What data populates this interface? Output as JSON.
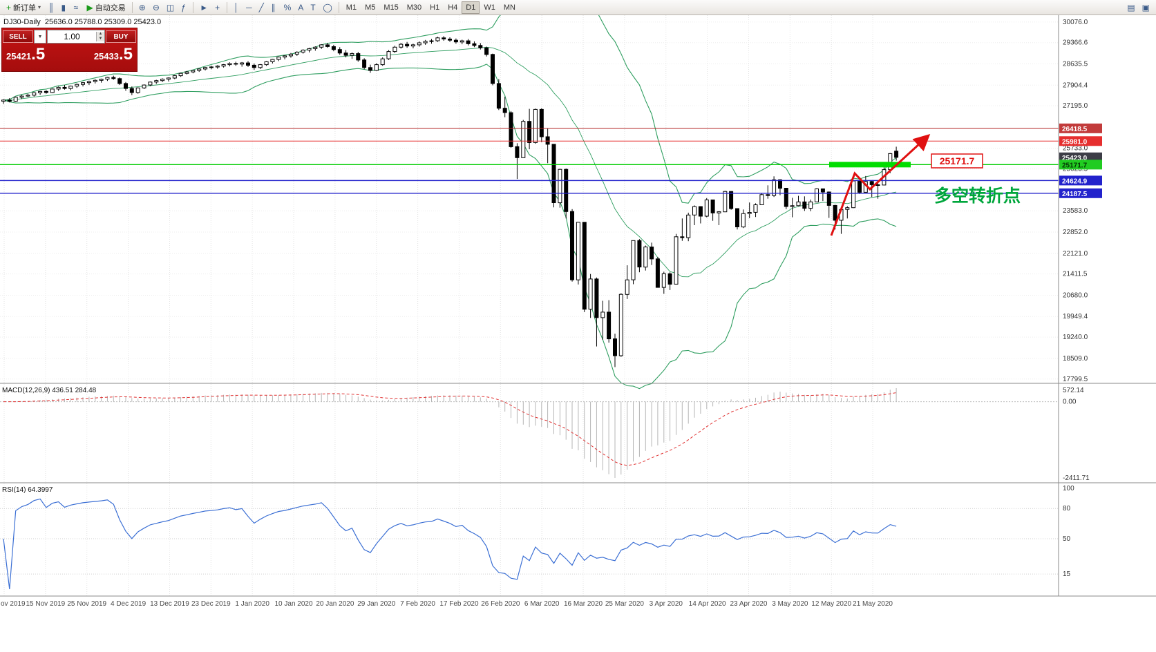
{
  "toolbar": {
    "new_order_label": "新订单",
    "autotrading_label": "自动交易",
    "timeframes": [
      "M1",
      "M5",
      "M15",
      "M30",
      "H1",
      "H4",
      "D1",
      "W1",
      "MN"
    ],
    "active_timeframe": "D1",
    "icon_groups": [
      [
        {
          "name": "bar-chart-icon",
          "glyph": "║"
        },
        {
          "name": "candlestick-chart-icon",
          "glyph": "▮"
        },
        {
          "name": "line-chart-icon",
          "glyph": "≈"
        }
      ],
      [
        {
          "name": "zoom-in-icon",
          "glyph": "⊕"
        },
        {
          "name": "zoom-out-icon",
          "glyph": "⊖"
        },
        {
          "name": "tile-windows-icon",
          "glyph": "◫"
        },
        {
          "name": "indicators-icon",
          "glyph": "ƒ"
        }
      ],
      [
        {
          "name": "cursor-icon",
          "glyph": "►"
        },
        {
          "name": "crosshair-icon",
          "glyph": "+"
        }
      ],
      [
        {
          "name": "vertical-line-icon",
          "glyph": "│"
        },
        {
          "name": "horizontal-line-icon",
          "glyph": "─"
        },
        {
          "name": "trendline-icon",
          "glyph": "╱"
        },
        {
          "name": "channel-icon",
          "glyph": "∥"
        },
        {
          "name": "fibonacci-icon",
          "glyph": "%"
        },
        {
          "name": "text-icon",
          "glyph": "A"
        },
        {
          "name": "label-icon",
          "glyph": "T"
        },
        {
          "name": "shapes-icon",
          "glyph": "◯"
        }
      ],
      [
        {
          "name": "navigator-icon",
          "glyph": "▤"
        },
        {
          "name": "data-window-icon",
          "glyph": "▣"
        }
      ]
    ]
  },
  "chart_header": {
    "symbol": "DJ30-Daily",
    "ohlc": "25636.0 25788.0 25309.0 25423.0"
  },
  "trade_panel": {
    "sell_label": "SELL",
    "buy_label": "BUY",
    "volume": "1.00",
    "sell_price_main": "25421",
    "sell_price_big": ".5",
    "buy_price_main": "25433",
    "buy_price_big": ".5"
  },
  "price_axis": {
    "ticks": [
      "30076.0",
      "29366.6",
      "28635.5",
      "27904.4",
      "27195.0",
      "25733.0",
      "25023.5",
      "23583.0",
      "22852.0",
      "22121.0",
      "21411.5",
      "20680.0",
      "19949.4",
      "19240.0",
      "18509.0",
      "17799.5"
    ],
    "tags": [
      {
        "label": "26418.5",
        "price": 26418.5,
        "bg": "#c23b3b",
        "fg": "#ffffff"
      },
      {
        "label": "25981.0",
        "price": 25981.0,
        "bg": "#e62e2e",
        "fg": "#ffffff"
      },
      {
        "label": "25423.0",
        "price": 25423.0,
        "bg": "#3c3c46",
        "fg": "#ffffff"
      },
      {
        "label": "25171.7",
        "price": 25171.7,
        "bg": "#21cc21",
        "fg": "#043304"
      },
      {
        "label": "24624.9",
        "price": 24624.9,
        "bg": "#2222cc",
        "fg": "#ffffff"
      },
      {
        "label": "24187.5",
        "price": 24187.5,
        "bg": "#2222cc",
        "fg": "#ffffff"
      }
    ]
  },
  "macd": {
    "label": "MACD(12,26,9) 436.51 284.48",
    "axis": [
      "572.14",
      "0.00",
      "-2411.71"
    ]
  },
  "rsi": {
    "label": "RSI(14) 64.3997",
    "axis": [
      "100",
      "80",
      "50",
      "15"
    ],
    "levels": [
      80,
      50,
      15
    ]
  },
  "chart_data": {
    "type": "candlestick",
    "symbol": "DJ30",
    "timeframe": "Daily",
    "ohlc_current": {
      "open": 25636.0,
      "high": 25788.0,
      "low": 25309.0,
      "close": 25423.0
    },
    "ylim": [
      17799.5,
      30076.0
    ],
    "x_dates": [
      "ov 2019",
      "15 Nov 2019",
      "25 Nov 2019",
      "4 Dec 2019",
      "13 Dec 2019",
      "23 Dec 2019",
      "1 Jan 2020",
      "10 Jan 2020",
      "20 Jan 2020",
      "29 Jan 2020",
      "7 Feb 2020",
      "17 Feb 2020",
      "26 Feb 2020",
      "6 Mar 2020",
      "16 Mar 2020",
      "25 Mar 2020",
      "3 Apr 2020",
      "14 Apr 2020",
      "23 Apr 2020",
      "3 May 2020",
      "12 May 2020",
      "21 May 2020"
    ],
    "overlays": {
      "bollinger_period": 20,
      "horizontal_lines": [
        {
          "price": 26418.5,
          "color": "#b22222",
          "width": 1
        },
        {
          "price": 25981.0,
          "color": "#e62e2e",
          "width": 1
        },
        {
          "price": 25171.7,
          "color": "#00cc00",
          "width": 1.4
        },
        {
          "price": 24624.9,
          "color": "#2222cc",
          "width": 1.4
        },
        {
          "price": 24187.5,
          "color": "#2222cc",
          "width": 1.4
        }
      ],
      "zone": {
        "price": 25171.7,
        "color": "#00dd00"
      },
      "annotation_text": "多空转折点",
      "annotation_text_color": "#00a63c",
      "annotation_price_label": "25171.7",
      "arrow_color": "#e01010"
    },
    "indicators": [
      {
        "name": "MACD",
        "params": [
          12,
          26,
          9
        ],
        "values": [
          436.51,
          284.48
        ]
      },
      {
        "name": "RSI",
        "params": [
          14
        ],
        "value": 64.3997
      }
    ],
    "candles": [
      [
        27350,
        27420,
        27260,
        27390
      ],
      [
        27390,
        27460,
        27310,
        27350
      ],
      [
        27350,
        27510,
        27330,
        27490
      ],
      [
        27490,
        27570,
        27430,
        27530
      ],
      [
        27530,
        27610,
        27490,
        27560
      ],
      [
        27560,
        27660,
        27510,
        27640
      ],
      [
        27640,
        27710,
        27570,
        27690
      ],
      [
        27690,
        27730,
        27610,
        27650
      ],
      [
        27650,
        27790,
        27630,
        27770
      ],
      [
        27770,
        27860,
        27710,
        27830
      ],
      [
        27830,
        27910,
        27750,
        27790
      ],
      [
        27790,
        27890,
        27730,
        27870
      ],
      [
        27870,
        27960,
        27810,
        27930
      ],
      [
        27930,
        28010,
        27860,
        27990
      ],
      [
        27990,
        28060,
        27910,
        28030
      ],
      [
        28030,
        28110,
        27960,
        28070
      ],
      [
        28070,
        28130,
        27990,
        28110
      ],
      [
        28110,
        28190,
        28050,
        28170
      ],
      [
        28170,
        28230,
        28090,
        28130
      ],
      [
        28130,
        28170,
        27910,
        27960
      ],
      [
        27960,
        28010,
        27710,
        27790
      ],
      [
        27790,
        27860,
        27560,
        27650
      ],
      [
        27650,
        27830,
        27610,
        27810
      ],
      [
        27810,
        27930,
        27770,
        27910
      ],
      [
        27910,
        28030,
        27870,
        28010
      ],
      [
        28010,
        28090,
        27950,
        28060
      ],
      [
        28060,
        28140,
        28010,
        28110
      ],
      [
        28110,
        28170,
        28030,
        28150
      ],
      [
        28150,
        28250,
        28110,
        28230
      ],
      [
        28230,
        28330,
        28190,
        28310
      ],
      [
        28310,
        28390,
        28270,
        28360
      ],
      [
        28360,
        28430,
        28310,
        28410
      ],
      [
        28410,
        28480,
        28360,
        28460
      ],
      [
        28460,
        28530,
        28410,
        28510
      ],
      [
        28510,
        28570,
        28450,
        28530
      ],
      [
        28530,
        28590,
        28470,
        28560
      ],
      [
        28560,
        28630,
        28510,
        28610
      ],
      [
        28610,
        28690,
        28550,
        28650
      ],
      [
        28650,
        28710,
        28570,
        28630
      ],
      [
        28630,
        28700,
        28540,
        28670
      ],
      [
        28670,
        28730,
        28530,
        28590
      ],
      [
        28590,
        28650,
        28430,
        28510
      ],
      [
        28510,
        28630,
        28460,
        28610
      ],
      [
        28610,
        28730,
        28570,
        28710
      ],
      [
        28710,
        28810,
        28650,
        28790
      ],
      [
        28790,
        28890,
        28730,
        28870
      ],
      [
        28870,
        28930,
        28790,
        28910
      ],
      [
        28910,
        29010,
        28850,
        28970
      ],
      [
        28970,
        29070,
        28910,
        29040
      ],
      [
        29040,
        29140,
        28990,
        29110
      ],
      [
        29110,
        29190,
        29030,
        29160
      ],
      [
        29160,
        29240,
        29090,
        29210
      ],
      [
        29210,
        29310,
        29150,
        29290
      ],
      [
        29290,
        29360,
        29190,
        29230
      ],
      [
        29230,
        29290,
        29070,
        29130
      ],
      [
        29130,
        29210,
        28950,
        29010
      ],
      [
        29010,
        29110,
        28860,
        28930
      ],
      [
        28930,
        29030,
        28810,
        28990
      ],
      [
        28990,
        29050,
        28710,
        28770
      ],
      [
        28770,
        28830,
        28450,
        28510
      ],
      [
        28510,
        28610,
        28330,
        28410
      ],
      [
        28410,
        28660,
        28390,
        28610
      ],
      [
        28610,
        28860,
        28570,
        28810
      ],
      [
        28810,
        29110,
        28770,
        29060
      ],
      [
        29060,
        29260,
        29010,
        29210
      ],
      [
        29210,
        29360,
        29160,
        29310
      ],
      [
        29310,
        29390,
        29190,
        29250
      ],
      [
        29250,
        29330,
        29170,
        29290
      ],
      [
        29290,
        29410,
        29230,
        29360
      ],
      [
        29360,
        29460,
        29290,
        29410
      ],
      [
        29410,
        29490,
        29330,
        29430
      ],
      [
        29430,
        29570,
        29390,
        29530
      ],
      [
        29530,
        29590,
        29430,
        29490
      ],
      [
        29490,
        29550,
        29390,
        29450
      ],
      [
        29450,
        29510,
        29330,
        29390
      ],
      [
        29390,
        29470,
        29310,
        29430
      ],
      [
        29430,
        29490,
        29270,
        29330
      ],
      [
        29330,
        29410,
        29210,
        29270
      ],
      [
        29270,
        29350,
        29130,
        29190
      ],
      [
        29190,
        29230,
        28890,
        28960
      ],
      [
        28960,
        28990,
        27900,
        27960
      ],
      [
        27960,
        28110,
        27050,
        27110
      ],
      [
        27110,
        27510,
        26800,
        26960
      ],
      [
        26960,
        27010,
        25750,
        25790
      ],
      [
        25790,
        25910,
        24680,
        25410
      ],
      [
        25410,
        26710,
        25400,
        26660
      ],
      [
        26660,
        27090,
        25700,
        25930
      ],
      [
        25930,
        27100,
        25890,
        27070
      ],
      [
        27070,
        27110,
        25940,
        26130
      ],
      [
        26130,
        26410,
        25220,
        25870
      ],
      [
        25870,
        25870,
        23700,
        23860
      ],
      [
        23860,
        25030,
        23690,
        25010
      ],
      [
        25010,
        25040,
        23320,
        23560
      ],
      [
        23560,
        23640,
        21150,
        21210
      ],
      [
        21210,
        23200,
        21050,
        23190
      ],
      [
        23190,
        23190,
        20100,
        20200
      ],
      [
        20200,
        21410,
        19900,
        21240
      ],
      [
        21240,
        21290,
        18920,
        19910
      ],
      [
        19910,
        20490,
        19150,
        20100
      ],
      [
        20100,
        20510,
        19050,
        19180
      ],
      [
        19180,
        19360,
        18210,
        18600
      ],
      [
        18600,
        20750,
        18560,
        20710
      ],
      [
        20710,
        21710,
        20550,
        21210
      ],
      [
        21210,
        22560,
        21060,
        22560
      ],
      [
        22560,
        22610,
        21470,
        21650
      ],
      [
        21650,
        22390,
        21530,
        22340
      ],
      [
        22340,
        22490,
        21720,
        21930
      ],
      [
        21930,
        22000,
        20950,
        20950
      ],
      [
        20950,
        21490,
        20730,
        21420
      ],
      [
        21420,
        21470,
        20860,
        21060
      ],
      [
        21060,
        22790,
        21060,
        22690
      ],
      [
        22690,
        23320,
        22550,
        22660
      ],
      [
        22660,
        23520,
        22540,
        23440
      ],
      [
        23440,
        23770,
        23090,
        23730
      ],
      [
        23730,
        23740,
        23150,
        23400
      ],
      [
        23400,
        24020,
        23360,
        23960
      ],
      [
        23960,
        23960,
        23240,
        23510
      ],
      [
        23510,
        23570,
        23090,
        23550
      ],
      [
        23550,
        24270,
        23540,
        24250
      ],
      [
        24250,
        24260,
        23620,
        23660
      ],
      [
        23660,
        23670,
        22940,
        23030
      ],
      [
        23030,
        23630,
        22990,
        23490
      ],
      [
        23490,
        23870,
        23330,
        23530
      ],
      [
        23530,
        23840,
        23370,
        23790
      ],
      [
        23790,
        24190,
        23780,
        24140
      ],
      [
        24140,
        24460,
        24000,
        24110
      ],
      [
        24110,
        24770,
        24060,
        24650
      ],
      [
        24650,
        24670,
        24120,
        24360
      ],
      [
        24360,
        24360,
        23640,
        23730
      ],
      [
        23730,
        24030,
        23360,
        23760
      ],
      [
        23760,
        24100,
        23740,
        23890
      ],
      [
        23890,
        24080,
        23580,
        23670
      ],
      [
        23670,
        23970,
        23570,
        23890
      ],
      [
        23890,
        24360,
        23880,
        24340
      ],
      [
        24340,
        24350,
        23920,
        24230
      ],
      [
        24230,
        24250,
        23340,
        23770
      ],
      [
        23770,
        23790,
        22940,
        23260
      ],
      [
        23260,
        23650,
        22790,
        23630
      ],
      [
        23630,
        23740,
        23320,
        23690
      ],
      [
        23690,
        24490,
        23680,
        24610
      ],
      [
        24610,
        24630,
        24160,
        24220
      ],
      [
        24220,
        24780,
        24210,
        24590
      ],
      [
        24590,
        24610,
        24060,
        24480
      ],
      [
        24480,
        24530,
        24000,
        24470
      ],
      [
        24470,
        25190,
        24460,
        25000
      ],
      [
        25000,
        25570,
        24880,
        25550
      ],
      [
        25636,
        25788,
        25309,
        25423
      ]
    ]
  }
}
